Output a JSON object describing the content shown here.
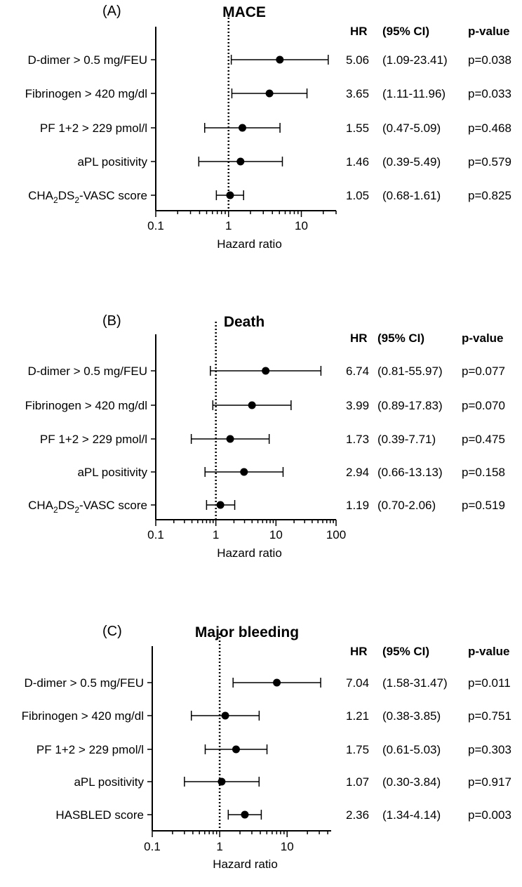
{
  "chart_data": [
    {
      "type": "forest",
      "panel_label": "(A)",
      "title": "MACE",
      "xlabel": "Hazard ratio",
      "xscale": "log",
      "xlim": [
        0.1,
        30
      ],
      "xticks": [
        "0.1",
        "1",
        "10"
      ],
      "reference_line": 1,
      "headers": {
        "hr": "HR",
        "ci": "(95% CI)",
        "p": "p-value"
      },
      "rows": [
        {
          "label": "D-dimer > 0.5 mg/FEU",
          "hr": 5.06,
          "lo": 1.09,
          "hi": 23.41,
          "hr_text": "5.06",
          "ci_text": "(1.09-23.41)",
          "p_text": "p=0.038"
        },
        {
          "label": "Fibrinogen > 420 mg/dl",
          "hr": 3.65,
          "lo": 1.11,
          "hi": 11.96,
          "hr_text": "3.65",
          "ci_text": "(1.11-11.96)",
          "p_text": "p=0.033"
        },
        {
          "label": "PF 1+2 > 229 pmol/l",
          "hr": 1.55,
          "lo": 0.47,
          "hi": 5.09,
          "hr_text": "1.55",
          "ci_text": "(0.47-5.09)",
          "p_text": "p=0.468"
        },
        {
          "label": "aPL positivity",
          "hr": 1.46,
          "lo": 0.39,
          "hi": 5.49,
          "hr_text": "1.46",
          "ci_text": "(0.39-5.49)",
          "p_text": "p=0.579"
        },
        {
          "label": "CHA2DS2-VASC score",
          "hr": 1.05,
          "lo": 0.68,
          "hi": 1.61,
          "hr_text": "1.05",
          "ci_text": "(0.68-1.61)",
          "p_text": "p=0.825"
        }
      ]
    },
    {
      "type": "forest",
      "panel_label": "(B)",
      "title": "Death",
      "xlabel": "Hazard ratio",
      "xscale": "log",
      "xlim": [
        0.1,
        100
      ],
      "xticks": [
        "0.1",
        "1",
        "10",
        "100"
      ],
      "reference_line": 1,
      "headers": {
        "hr": "HR",
        "ci": "(95% CI)",
        "p": "p-value"
      },
      "rows": [
        {
          "label": "D-dimer > 0.5 mg/FEU",
          "hr": 6.74,
          "lo": 0.81,
          "hi": 55.97,
          "hr_text": "6.74",
          "ci_text": "(0.81-55.97)",
          "p_text": "p=0.077"
        },
        {
          "label": "Fibrinogen > 420 mg/dl",
          "hr": 3.99,
          "lo": 0.89,
          "hi": 17.83,
          "hr_text": "3.99",
          "ci_text": "(0.89-17.83)",
          "p_text": "p=0.070"
        },
        {
          "label": "PF 1+2 > 229 pmol/l",
          "hr": 1.73,
          "lo": 0.39,
          "hi": 7.71,
          "hr_text": "1.73",
          "ci_text": "(0.39-7.71)",
          "p_text": "p=0.475"
        },
        {
          "label": "aPL positivity",
          "hr": 2.94,
          "lo": 0.66,
          "hi": 13.13,
          "hr_text": "2.94",
          "ci_text": "(0.66-13.13)",
          "p_text": "p=0.158"
        },
        {
          "label": "CHA2DS2-VASC score",
          "hr": 1.19,
          "lo": 0.7,
          "hi": 2.06,
          "hr_text": "1.19",
          "ci_text": "(0.70-2.06)",
          "p_text": "p=0.519"
        }
      ]
    },
    {
      "type": "forest",
      "panel_label": "(C)",
      "title": "Major bleeding",
      "xlabel": "Hazard ratio",
      "xscale": "log",
      "xlim": [
        0.1,
        45
      ],
      "xticks": [
        "0.1",
        "1",
        "10"
      ],
      "reference_line": 1,
      "headers": {
        "hr": "HR",
        "ci": "(95% CI)",
        "p": "p-value"
      },
      "rows": [
        {
          "label": "D-dimer > 0.5 mg/FEU",
          "hr": 7.04,
          "lo": 1.58,
          "hi": 31.47,
          "hr_text": "7.04",
          "ci_text": "(1.58-31.47)",
          "p_text": "p=0.011"
        },
        {
          "label": "Fibrinogen > 420 mg/dl",
          "hr": 1.21,
          "lo": 0.38,
          "hi": 3.85,
          "hr_text": "1.21",
          "ci_text": "(0.38-3.85)",
          "p_text": "p=0.751"
        },
        {
          "label": "PF 1+2 > 229 pmol/l",
          "hr": 1.75,
          "lo": 0.61,
          "hi": 5.03,
          "hr_text": "1.75",
          "ci_text": "(0.61-5.03)",
          "p_text": "p=0.303"
        },
        {
          "label": "aPL positivity",
          "hr": 1.07,
          "lo": 0.3,
          "hi": 3.84,
          "hr_text": "1.07",
          "ci_text": "(0.30-3.84)",
          "p_text": "p=0.917"
        },
        {
          "label": "HASBLED score",
          "hr": 2.36,
          "lo": 1.34,
          "hi": 4.14,
          "hr_text": "2.36",
          "ci_text": "(1.34-4.14)",
          "p_text": "p=0.003"
        }
      ]
    }
  ]
}
